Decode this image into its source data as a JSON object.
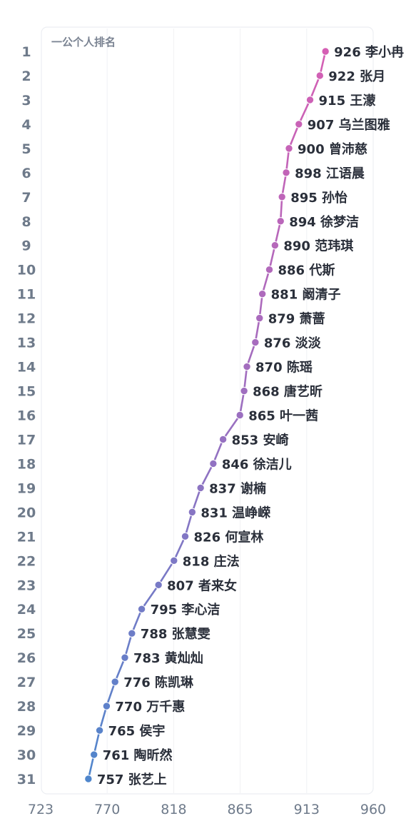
{
  "chart_data": {
    "type": "line",
    "title": "一公个人排名",
    "xlabel": "",
    "ylabel": "",
    "xlim": [
      723,
      960
    ],
    "x_ticks": [
      "723",
      "770",
      "818",
      "865",
      "913",
      "960"
    ],
    "grid": true,
    "orientation": "horizontal",
    "colors": {
      "top": "#d55fb4",
      "middle": "#9b6fc0",
      "bottom": "#4f86cc"
    },
    "points": [
      {
        "rank": "1",
        "value": 926,
        "name": "李小冉"
      },
      {
        "rank": "2",
        "value": 922,
        "name": "张月"
      },
      {
        "rank": "3",
        "value": 915,
        "name": "王濛"
      },
      {
        "rank": "4",
        "value": 907,
        "name": "乌兰图雅"
      },
      {
        "rank": "5",
        "value": 900,
        "name": "曾沛慈"
      },
      {
        "rank": "6",
        "value": 898,
        "name": "江语晨"
      },
      {
        "rank": "7",
        "value": 895,
        "name": "孙怡"
      },
      {
        "rank": "8",
        "value": 894,
        "name": "徐梦洁"
      },
      {
        "rank": "9",
        "value": 890,
        "name": "范玮琪"
      },
      {
        "rank": "10",
        "value": 886,
        "name": "代斯"
      },
      {
        "rank": "11",
        "value": 881,
        "name": "阚清子"
      },
      {
        "rank": "12",
        "value": 879,
        "name": "萧蔷"
      },
      {
        "rank": "13",
        "value": 876,
        "name": "淡淡"
      },
      {
        "rank": "14",
        "value": 870,
        "name": "陈瑶"
      },
      {
        "rank": "15",
        "value": 868,
        "name": "唐艺昕"
      },
      {
        "rank": "16",
        "value": 865,
        "name": "叶一茜"
      },
      {
        "rank": "17",
        "value": 853,
        "name": "安崎"
      },
      {
        "rank": "18",
        "value": 846,
        "name": "徐洁儿"
      },
      {
        "rank": "19",
        "value": 837,
        "name": "谢楠"
      },
      {
        "rank": "20",
        "value": 831,
        "name": "温峥嵘"
      },
      {
        "rank": "21",
        "value": 826,
        "name": "何宣林"
      },
      {
        "rank": "22",
        "value": 818,
        "name": "庄法"
      },
      {
        "rank": "23",
        "value": 807,
        "name": "者来女"
      },
      {
        "rank": "24",
        "value": 795,
        "name": "李心洁"
      },
      {
        "rank": "25",
        "value": 788,
        "name": "张慧雯"
      },
      {
        "rank": "26",
        "value": 783,
        "name": "黄灿灿"
      },
      {
        "rank": "27",
        "value": 776,
        "name": "陈凯琳"
      },
      {
        "rank": "28",
        "value": 770,
        "name": "万千惠"
      },
      {
        "rank": "29",
        "value": 765,
        "name": "侯宇"
      },
      {
        "rank": "30",
        "value": 761,
        "name": "陶昕然"
      },
      {
        "rank": "31",
        "value": 757,
        "name": "张艺上"
      }
    ]
  }
}
